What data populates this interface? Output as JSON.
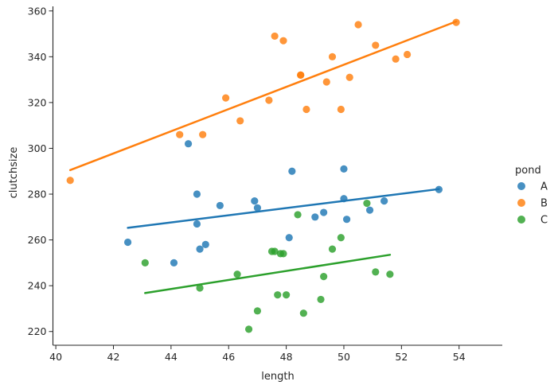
{
  "chart_data": {
    "type": "scatter",
    "xlabel": "length",
    "ylabel": "clutchsize",
    "xlim": [
      39.9,
      55.5
    ],
    "ylim": [
      214,
      362
    ],
    "xticks": [
      40,
      42,
      44,
      46,
      48,
      50,
      52,
      54
    ],
    "yticks": [
      220,
      240,
      260,
      280,
      300,
      320,
      340,
      360
    ],
    "grid": false,
    "legend": {
      "title": "pond",
      "placement": "right"
    },
    "series": [
      {
        "name": "A",
        "color": "#1f77b4",
        "points": [
          [
            42.5,
            259
          ],
          [
            44.1,
            250
          ],
          [
            44.6,
            302
          ],
          [
            44.9,
            280
          ],
          [
            44.9,
            267
          ],
          [
            45.0,
            256
          ],
          [
            45.2,
            258
          ],
          [
            45.7,
            275
          ],
          [
            46.9,
            277
          ],
          [
            47.0,
            274
          ],
          [
            48.1,
            261
          ],
          [
            48.2,
            290
          ],
          [
            49.0,
            270
          ],
          [
            49.3,
            272
          ],
          [
            50.0,
            291
          ],
          [
            50.0,
            278
          ],
          [
            50.1,
            269
          ],
          [
            50.9,
            273
          ],
          [
            51.4,
            277
          ],
          [
            53.3,
            282
          ]
        ],
        "fit": [
          [
            42.5,
            265.3
          ],
          [
            53.3,
            282.2
          ]
        ]
      },
      {
        "name": "B",
        "color": "#ff7f0e",
        "points": [
          [
            40.5,
            286
          ],
          [
            44.3,
            306
          ],
          [
            45.1,
            306
          ],
          [
            45.9,
            322
          ],
          [
            46.4,
            312
          ],
          [
            47.4,
            321
          ],
          [
            47.6,
            349
          ],
          [
            47.9,
            347
          ],
          [
            48.5,
            332
          ],
          [
            48.5,
            332
          ],
          [
            48.7,
            317
          ],
          [
            49.4,
            329
          ],
          [
            49.6,
            340
          ],
          [
            49.9,
            317
          ],
          [
            50.2,
            331
          ],
          [
            50.5,
            354
          ],
          [
            51.1,
            345
          ],
          [
            51.8,
            339
          ],
          [
            52.2,
            341
          ],
          [
            53.9,
            355
          ]
        ],
        "fit": [
          [
            40.5,
            290.5
          ],
          [
            53.9,
            355.4
          ]
        ]
      },
      {
        "name": "C",
        "color": "#2ca02c",
        "points": [
          [
            43.1,
            250
          ],
          [
            45.0,
            239
          ],
          [
            46.3,
            245
          ],
          [
            46.7,
            221
          ],
          [
            47.0,
            229
          ],
          [
            47.5,
            255
          ],
          [
            47.6,
            255
          ],
          [
            47.7,
            236
          ],
          [
            47.8,
            254
          ],
          [
            47.9,
            254
          ],
          [
            48.0,
            236
          ],
          [
            48.4,
            271
          ],
          [
            48.6,
            228
          ],
          [
            49.2,
            234
          ],
          [
            49.3,
            244
          ],
          [
            49.6,
            256
          ],
          [
            49.9,
            261
          ],
          [
            50.8,
            276
          ],
          [
            51.1,
            246
          ],
          [
            51.6,
            245
          ]
        ],
        "fit": [
          [
            43.1,
            236.8
          ],
          [
            51.6,
            253.5
          ]
        ]
      }
    ]
  }
}
